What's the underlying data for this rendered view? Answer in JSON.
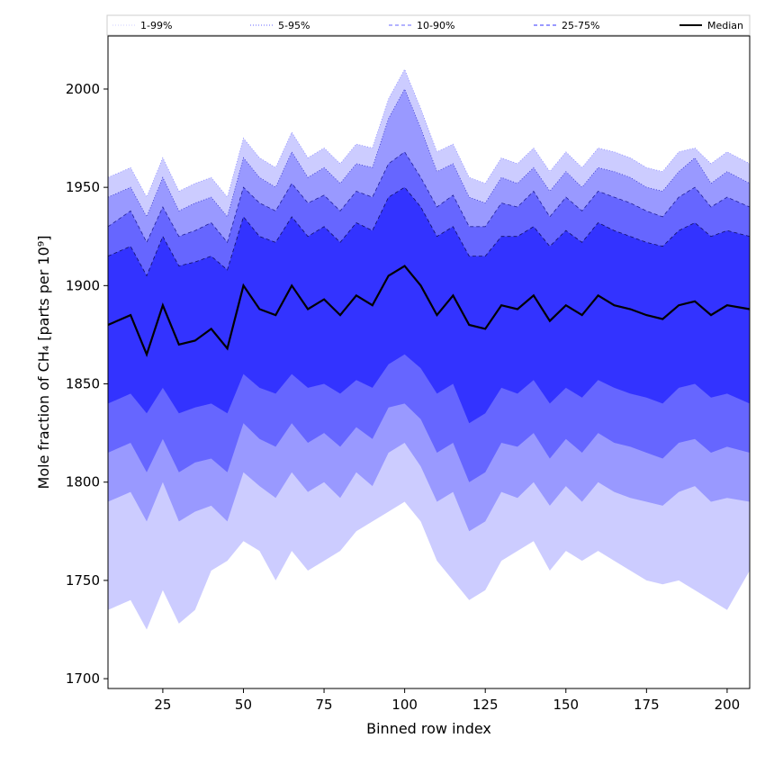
{
  "chart_data": {
    "type": "area",
    "xlabel": "Binned row index",
    "ylabel": "Mole fraction of CH₄ [parts per 10⁹]",
    "xlim": [
      8,
      207
    ],
    "ylim": [
      1695,
      2027
    ],
    "x_ticks": [
      25,
      50,
      75,
      100,
      125,
      150,
      175,
      200
    ],
    "y_ticks": [
      1700,
      1750,
      1800,
      1850,
      1900,
      1950,
      2000
    ],
    "grid": false,
    "legend_position": "top",
    "colors": {
      "band_1_99": "#ccccff",
      "band_5_95": "#9999ff",
      "band_10_90": "#6666ff",
      "band_25_75": "#3333ff",
      "median": "#000000"
    },
    "legend": [
      {
        "label": "1-99%",
        "style": "dotted",
        "color": "#ccccff"
      },
      {
        "label": "5-95%",
        "style": "dotted",
        "color": "#6666ff"
      },
      {
        "label": "10-90%",
        "style": "dashed",
        "color": "#6666ff"
      },
      {
        "label": "25-75%",
        "style": "dashed",
        "color": "#3333ff"
      },
      {
        "label": "Median",
        "style": "solid",
        "color": "#000000"
      }
    ],
    "x": [
      8,
      15,
      20,
      25,
      30,
      35,
      40,
      45,
      50,
      55,
      60,
      65,
      70,
      75,
      80,
      85,
      90,
      95,
      100,
      105,
      110,
      115,
      120,
      125,
      130,
      135,
      140,
      145,
      150,
      155,
      160,
      165,
      170,
      175,
      180,
      185,
      190,
      195,
      200,
      207
    ],
    "series": [
      {
        "name": "Median",
        "values": [
          1880,
          1885,
          1865,
          1890,
          1870,
          1872,
          1878,
          1868,
          1900,
          1888,
          1885,
          1900,
          1888,
          1893,
          1885,
          1895,
          1890,
          1905,
          1910,
          1900,
          1885,
          1895,
          1880,
          1878,
          1890,
          1888,
          1895,
          1882,
          1890,
          1885,
          1895,
          1890,
          1888,
          1885,
          1883,
          1890,
          1892,
          1885,
          1890,
          1888
        ]
      },
      {
        "name": "25-75%",
        "lower": [
          1840,
          1845,
          1835,
          1848,
          1835,
          1838,
          1840,
          1835,
          1855,
          1848,
          1845,
          1855,
          1848,
          1850,
          1845,
          1852,
          1848,
          1860,
          1865,
          1858,
          1845,
          1850,
          1830,
          1835,
          1848,
          1845,
          1852,
          1840,
          1848,
          1843,
          1852,
          1848,
          1845,
          1843,
          1840,
          1848,
          1850,
          1843,
          1845,
          1840
        ],
        "upper": [
          1915,
          1920,
          1905,
          1925,
          1910,
          1912,
          1915,
          1908,
          1935,
          1925,
          1922,
          1935,
          1925,
          1930,
          1922,
          1932,
          1928,
          1945,
          1950,
          1940,
          1925,
          1930,
          1915,
          1915,
          1925,
          1925,
          1930,
          1920,
          1928,
          1922,
          1932,
          1928,
          1925,
          1922,
          1920,
          1928,
          1932,
          1925,
          1928,
          1925
        ]
      },
      {
        "name": "10-90%",
        "lower": [
          1815,
          1820,
          1805,
          1822,
          1805,
          1810,
          1812,
          1805,
          1830,
          1822,
          1818,
          1830,
          1820,
          1825,
          1818,
          1828,
          1822,
          1838,
          1840,
          1832,
          1815,
          1820,
          1800,
          1805,
          1820,
          1818,
          1825,
          1812,
          1822,
          1815,
          1825,
          1820,
          1818,
          1815,
          1812,
          1820,
          1822,
          1815,
          1818,
          1815
        ],
        "upper": [
          1930,
          1938,
          1922,
          1940,
          1925,
          1928,
          1932,
          1922,
          1950,
          1942,
          1938,
          1952,
          1942,
          1946,
          1938,
          1948,
          1945,
          1962,
          1968,
          1955,
          1940,
          1946,
          1930,
          1930,
          1942,
          1940,
          1948,
          1935,
          1945,
          1938,
          1948,
          1945,
          1942,
          1938,
          1935,
          1945,
          1950,
          1940,
          1945,
          1940
        ]
      },
      {
        "name": "5-95%",
        "lower": [
          1790,
          1795,
          1780,
          1800,
          1780,
          1785,
          1788,
          1780,
          1805,
          1798,
          1792,
          1805,
          1795,
          1800,
          1792,
          1805,
          1798,
          1815,
          1820,
          1808,
          1790,
          1795,
          1775,
          1780,
          1795,
          1792,
          1800,
          1788,
          1798,
          1790,
          1800,
          1795,
          1792,
          1790,
          1788,
          1795,
          1798,
          1790,
          1792,
          1790
        ],
        "upper": [
          1945,
          1950,
          1935,
          1955,
          1938,
          1942,
          1945,
          1935,
          1965,
          1955,
          1950,
          1968,
          1955,
          1960,
          1952,
          1962,
          1960,
          1985,
          2000,
          1980,
          1958,
          1962,
          1945,
          1942,
          1955,
          1952,
          1960,
          1948,
          1958,
          1950,
          1960,
          1958,
          1955,
          1950,
          1948,
          1958,
          1965,
          1952,
          1958,
          1952
        ]
      },
      {
        "name": "1-99%",
        "lower": [
          1735,
          1740,
          1725,
          1745,
          1728,
          1735,
          1755,
          1760,
          1770,
          1765,
          1750,
          1765,
          1755,
          1760,
          1765,
          1775,
          1780,
          1785,
          1790,
          1780,
          1760,
          1750,
          1740,
          1745,
          1760,
          1765,
          1770,
          1755,
          1765,
          1760,
          1765,
          1760,
          1755,
          1750,
          1748,
          1750,
          1745,
          1740,
          1735,
          1755
        ],
        "upper": [
          1955,
          1960,
          1945,
          1965,
          1948,
          1952,
          1955,
          1945,
          1975,
          1965,
          1960,
          1978,
          1965,
          1970,
          1962,
          1972,
          1970,
          1995,
          2010,
          1990,
          1968,
          1972,
          1955,
          1952,
          1965,
          1962,
          1970,
          1958,
          1968,
          1960,
          1970,
          1968,
          1965,
          1960,
          1958,
          1968,
          1970,
          1962,
          1968,
          1962
        ]
      }
    ]
  }
}
